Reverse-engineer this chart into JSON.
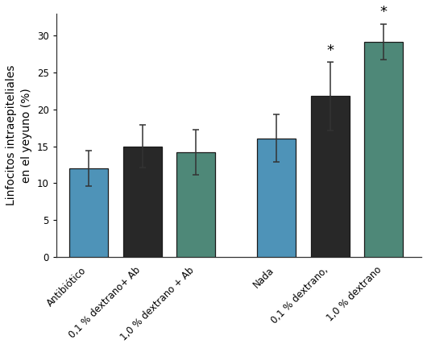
{
  "categories": [
    "Antibiótico",
    "0,1 % dextrano+ Ab",
    "1,0 % dextrano + Ab",
    "Nada",
    "0,1 % dextrano,",
    "1,0 % dextrano"
  ],
  "values": [
    12.0,
    15.0,
    14.2,
    16.1,
    21.8,
    29.2
  ],
  "errors": [
    2.4,
    2.9,
    3.1,
    3.2,
    4.6,
    2.4
  ],
  "bar_colors": [
    "#4e93b8",
    "#282828",
    "#4e8878",
    "#4e93b8",
    "#282828",
    "#4e8878"
  ],
  "bar_positions": [
    0.5,
    1.5,
    2.5,
    4.0,
    5.0,
    6.0
  ],
  "bar_width": 0.72,
  "ylabel": "Linfocitos intraepiteliales\nen el yeyuno (%)",
  "ylim": [
    0,
    33
  ],
  "yticks": [
    0,
    5,
    10,
    15,
    20,
    25,
    30
  ],
  "asterisk_bar_indices": [
    4,
    5
  ],
  "background_color": "#ffffff",
  "edge_color": "#1a1a1a",
  "error_capsize": 3,
  "ylabel_fontsize": 10,
  "tick_fontsize": 8.5,
  "asterisk_fontsize": 13,
  "xlim": [
    -0.1,
    6.7
  ]
}
